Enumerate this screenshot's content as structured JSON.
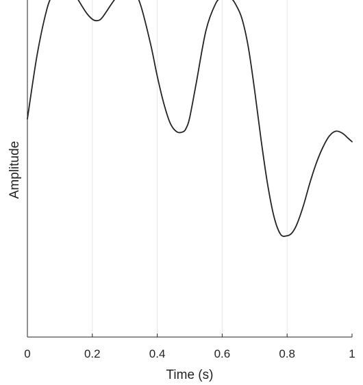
{
  "chart_data": {
    "type": "line",
    "xlabel": "Time (s)",
    "ylabel": "Amplitude",
    "xlim": [
      0,
      1
    ],
    "ylim": [
      -1,
      1
    ],
    "x_ticks": [
      "0",
      "0.2",
      "0.4",
      "0.6",
      "0.8",
      "1"
    ],
    "x_tick_values": [
      0,
      0.2,
      0.4,
      0.6,
      0.8,
      1.0
    ],
    "y_ticks_visible": false,
    "grid": "vertical",
    "legend": "none",
    "series": [
      {
        "color": "#222222",
        "x": [
          0.0,
          0.03,
          0.06,
          0.08,
          0.1,
          0.11,
          0.13,
          0.15,
          0.18,
          0.2,
          0.215,
          0.23,
          0.26,
          0.28,
          0.3,
          0.315,
          0.33,
          0.35,
          0.38,
          0.4,
          0.42,
          0.44,
          0.46,
          0.48,
          0.49,
          0.5,
          0.52,
          0.55,
          0.58,
          0.6,
          0.62,
          0.63,
          0.64,
          0.66,
          0.68,
          0.7,
          0.72,
          0.74,
          0.76,
          0.78,
          0.8,
          0.815,
          0.83,
          0.85,
          0.87,
          0.89,
          0.91,
          0.93,
          0.95,
          0.97,
          0.99,
          1.0
        ],
        "y": [
          0.05,
          0.5,
          0.82,
          0.93,
          0.99,
          1.0,
          0.98,
          0.91,
          0.8,
          0.75,
          0.74,
          0.76,
          0.86,
          0.92,
          0.95,
          0.955,
          0.94,
          0.84,
          0.57,
          0.35,
          0.16,
          0.02,
          -0.04,
          -0.04,
          -0.01,
          0.06,
          0.3,
          0.67,
          0.86,
          0.9,
          0.9,
          0.89,
          0.86,
          0.76,
          0.56,
          0.25,
          -0.1,
          -0.41,
          -0.64,
          -0.76,
          -0.77,
          -0.75,
          -0.69,
          -0.56,
          -0.4,
          -0.26,
          -0.15,
          -0.07,
          -0.036,
          -0.05,
          -0.09,
          -0.11
        ]
      }
    ]
  }
}
